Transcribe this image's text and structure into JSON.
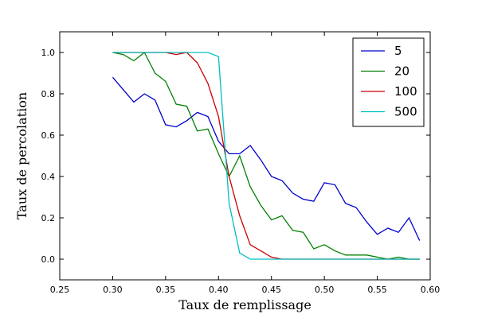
{
  "chart_data": {
    "type": "line",
    "xlabel": "Taux de remplissage",
    "ylabel": "Taux de percolation",
    "xlim": [
      0.25,
      0.6
    ],
    "ylim": [
      -0.1,
      1.1
    ],
    "xticks": [
      "0.25",
      "0.30",
      "0.35",
      "0.40",
      "0.45",
      "0.50",
      "0.55",
      "0.60"
    ],
    "yticks": [
      "0.0",
      "0.2",
      "0.4",
      "0.6",
      "0.8",
      "1.0"
    ],
    "grid": false,
    "legend_position": "top-right",
    "x": [
      0.3,
      0.31,
      0.32,
      0.33,
      0.34,
      0.35,
      0.36,
      0.37,
      0.38,
      0.39,
      0.4,
      0.41,
      0.42,
      0.43,
      0.44,
      0.45,
      0.46,
      0.47,
      0.48,
      0.49,
      0.5,
      0.51,
      0.52,
      0.53,
      0.54,
      0.55,
      0.56,
      0.57,
      0.58,
      0.59
    ],
    "series": [
      {
        "name": "5",
        "color": "#0000cc",
        "values": [
          0.88,
          0.82,
          0.76,
          0.8,
          0.77,
          0.65,
          0.64,
          0.67,
          0.71,
          0.69,
          0.57,
          0.51,
          0.51,
          0.55,
          0.48,
          0.4,
          0.38,
          0.32,
          0.29,
          0.28,
          0.37,
          0.36,
          0.27,
          0.25,
          0.18,
          0.12,
          0.15,
          0.13,
          0.2,
          0.09
        ]
      },
      {
        "name": "20",
        "color": "#008000",
        "values": [
          1.0,
          0.99,
          0.96,
          1.0,
          0.9,
          0.86,
          0.75,
          0.74,
          0.62,
          0.63,
          0.51,
          0.4,
          0.5,
          0.35,
          0.26,
          0.19,
          0.21,
          0.14,
          0.13,
          0.05,
          0.07,
          0.04,
          0.02,
          0.02,
          0.02,
          0.01,
          0.0,
          0.01,
          0.0,
          0.0
        ]
      },
      {
        "name": "100",
        "color": "#cc0000",
        "values": [
          1.0,
          1.0,
          1.0,
          1.0,
          1.0,
          1.0,
          0.99,
          1.0,
          0.95,
          0.85,
          0.69,
          0.4,
          0.21,
          0.07,
          0.04,
          0.01,
          0.0,
          0.0,
          0.0,
          0.0,
          0.0,
          0.0,
          0.0,
          0.0,
          0.0,
          0.0,
          0.0,
          0.0,
          0.0,
          0.0
        ]
      },
      {
        "name": "500",
        "color": "#00bfbf",
        "values": [
          1.0,
          1.0,
          1.0,
          1.0,
          1.0,
          1.0,
          1.0,
          1.0,
          1.0,
          1.0,
          0.98,
          0.27,
          0.03,
          0.0,
          0.0,
          0.0,
          0.0,
          0.0,
          0.0,
          0.0,
          0.0,
          0.0,
          0.0,
          0.0,
          0.0,
          0.0,
          0.0,
          0.0,
          0.0,
          0.0
        ]
      }
    ]
  }
}
